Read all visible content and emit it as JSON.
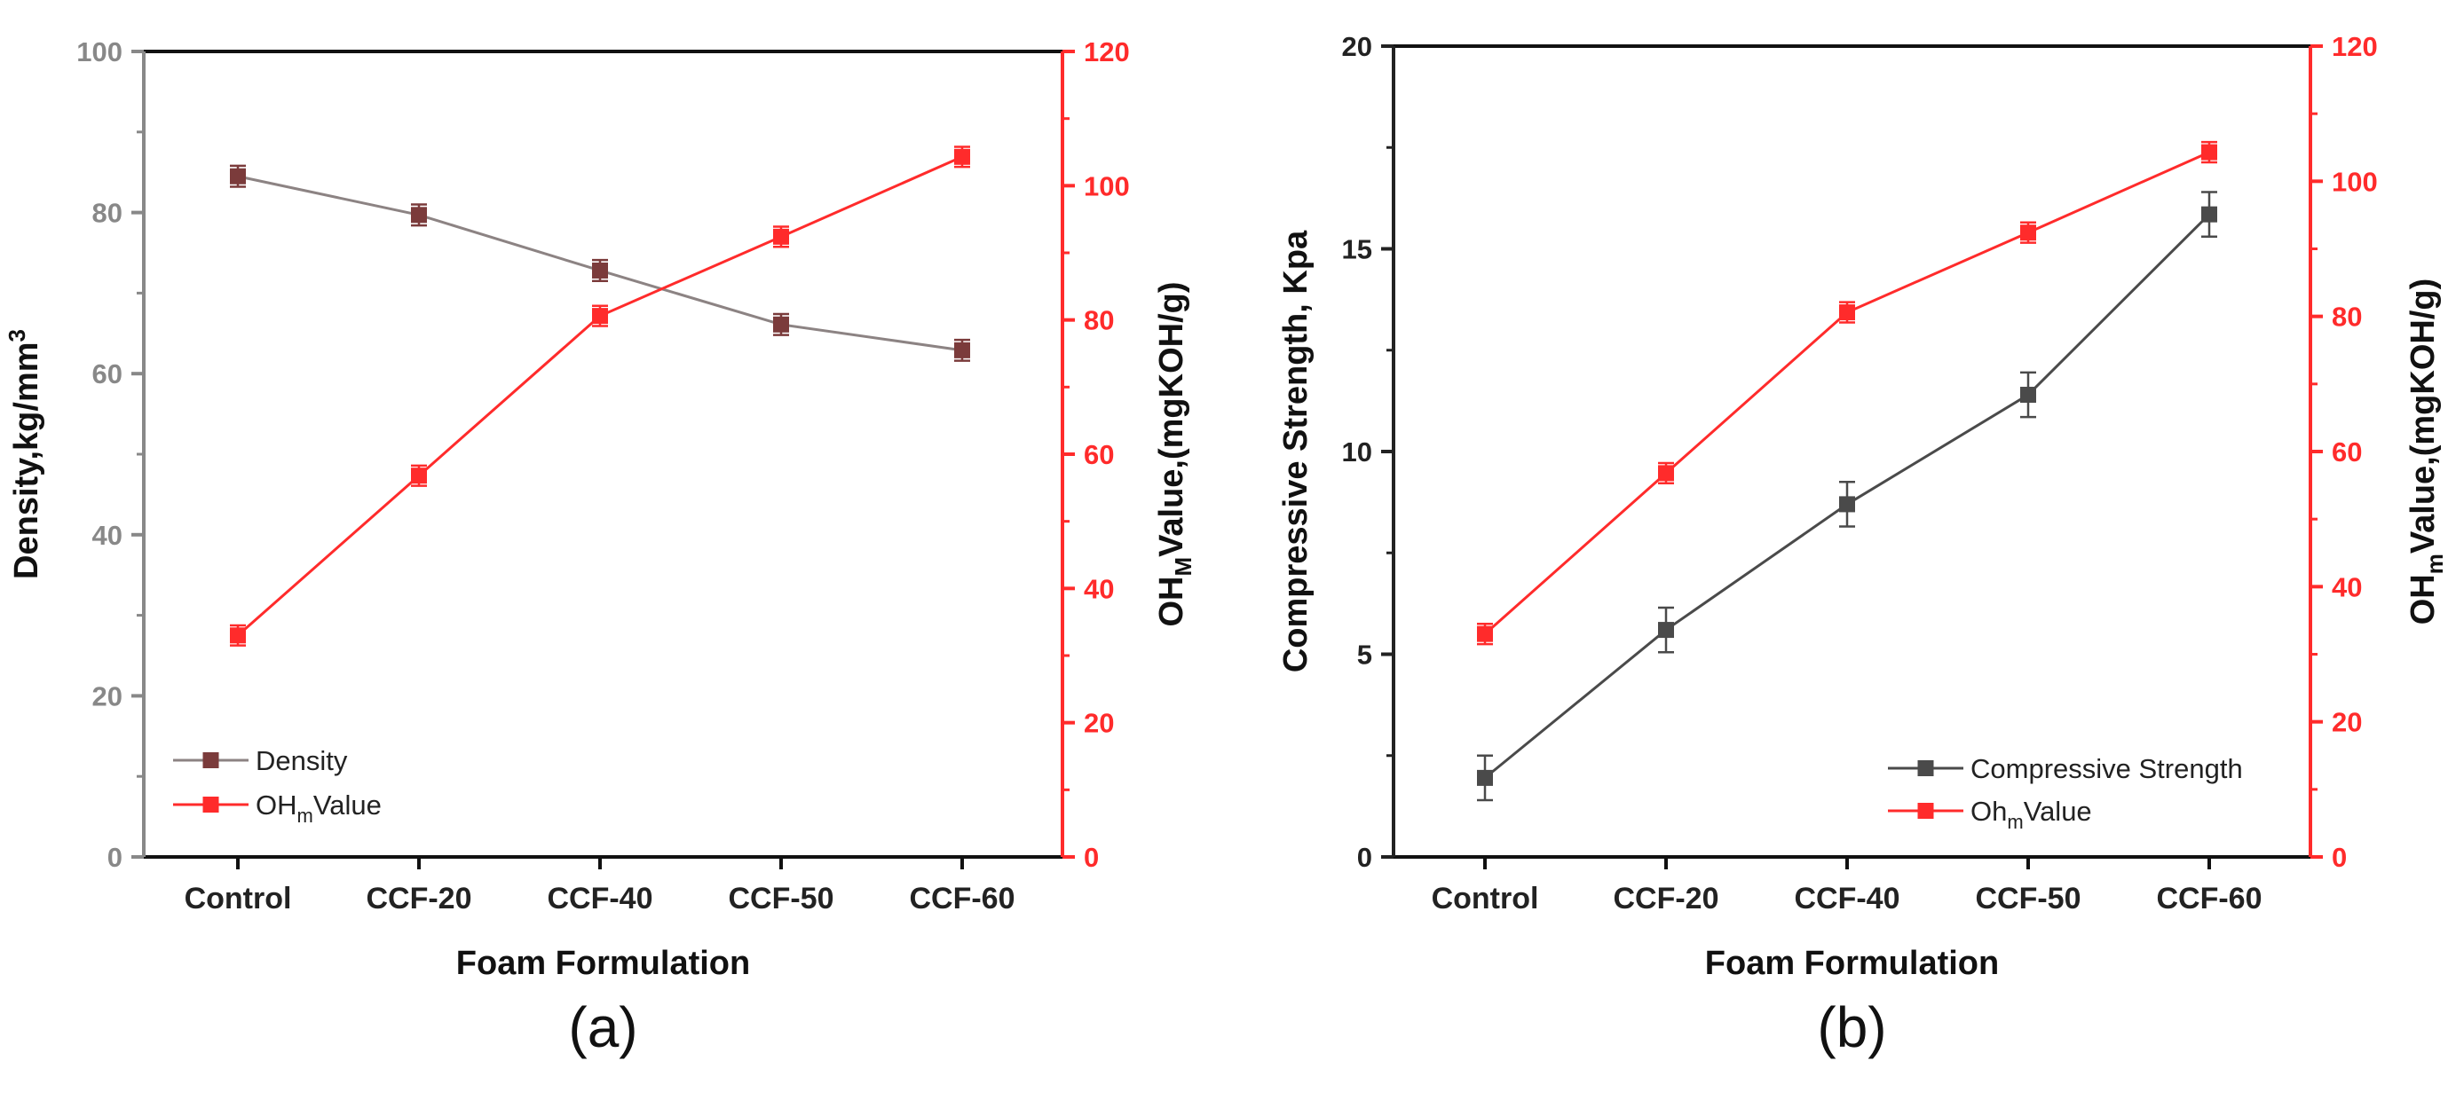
{
  "chart_data": [
    {
      "type": "line",
      "panel_label": "(a)",
      "categories": [
        "Control",
        "CCF-20",
        "CCF-40",
        "CCF-50",
        "CCF-60"
      ],
      "xlabel": "Foam Formulation",
      "ylabel_left": {
        "main": "Density,kg/mm",
        "sup": "3"
      },
      "ylabel_right": {
        "pre": "OH",
        "sub": "M",
        "post": "Value,(mgKOH/g)"
      },
      "ylim_left": [
        0,
        100
      ],
      "yticks_left": [
        "0",
        "20",
        "40",
        "60",
        "80",
        "100"
      ],
      "ylim_right": [
        0,
        120
      ],
      "yticks_right": [
        "0",
        "20",
        "40",
        "60",
        "80",
        "100",
        "120"
      ],
      "legend_position": "bottom-left",
      "series": [
        {
          "name": "Density",
          "legend": {
            "pre": "Density",
            "sub": "",
            "post": ""
          },
          "axis": "left",
          "color": "#8c8383",
          "marker_color": "#7b3b3b",
          "values": [
            84.5,
            79.7,
            72.8,
            66.1,
            62.9
          ],
          "errors": [
            1.3,
            1.3,
            1.3,
            1.3,
            1.3
          ]
        },
        {
          "name": "OHmValue",
          "legend": {
            "pre": "OH",
            "sub": "m",
            "post": "Value"
          },
          "axis": "right",
          "color": "#ff2b2b",
          "marker_color": "#ff2b2b",
          "values": [
            33.0,
            56.8,
            80.6,
            92.4,
            104.3
          ],
          "errors": [
            1.5,
            1.5,
            1.5,
            1.5,
            1.5
          ]
        }
      ]
    },
    {
      "type": "line",
      "panel_label": "(b)",
      "categories": [
        "Control",
        "CCF-20",
        "CCF-40",
        "CCF-50",
        "CCF-60"
      ],
      "xlabel": "Foam Formulation",
      "ylabel_left": {
        "main": "Compressive Strength, Kpa",
        "sup": ""
      },
      "ylabel_right": {
        "pre": "OH",
        "sub": "m",
        "post": "Value,(mgKOH/g)"
      },
      "ylim_left": [
        0,
        20
      ],
      "yticks_left": [
        "0",
        "5",
        "10",
        "15",
        "20"
      ],
      "ylim_right": [
        0,
        120
      ],
      "yticks_right": [
        "0",
        "20",
        "40",
        "60",
        "80",
        "100",
        "120"
      ],
      "legend_position": "bottom-right",
      "series": [
        {
          "name": "Compressive Strength",
          "legend": {
            "pre": "Compressive Strength",
            "sub": "",
            "post": ""
          },
          "axis": "left",
          "color": "#4a4a4a",
          "marker_color": "#4a4a4a",
          "values": [
            1.95,
            5.6,
            8.7,
            11.4,
            15.85
          ],
          "errors": [
            0.55,
            0.55,
            0.55,
            0.55,
            0.55
          ]
        },
        {
          "name": "OhmValue",
          "legend": {
            "pre": "Oh",
            "sub": "m",
            "post": "Value"
          },
          "axis": "right",
          "color": "#ff2b2b",
          "marker_color": "#ff2b2b",
          "values": [
            33.0,
            56.8,
            80.6,
            92.4,
            104.3
          ],
          "errors": [
            1.5,
            1.5,
            1.5,
            1.5,
            1.5
          ]
        }
      ]
    }
  ]
}
